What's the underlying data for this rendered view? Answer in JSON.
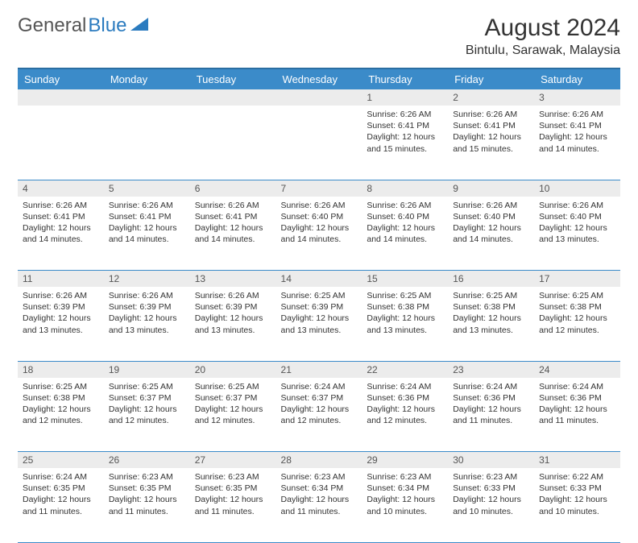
{
  "logo": {
    "text1": "General",
    "text2": "Blue"
  },
  "title": "August 2024",
  "location": "Bintulu, Sarawak, Malaysia",
  "colors": {
    "header_bg": "#3b8bc9",
    "header_border": "#2b6ea2",
    "daynum_bg": "#ececec",
    "text": "#333333",
    "logo_gray": "#555555",
    "logo_blue": "#2b7bbf",
    "cell_border": "#3b8bc9"
  },
  "weekdays": [
    "Sunday",
    "Monday",
    "Tuesday",
    "Wednesday",
    "Thursday",
    "Friday",
    "Saturday"
  ],
  "weeks": [
    [
      null,
      null,
      null,
      null,
      {
        "n": "1",
        "sunrise": "6:26 AM",
        "sunset": "6:41 PM",
        "daylight": "12 hours and 15 minutes."
      },
      {
        "n": "2",
        "sunrise": "6:26 AM",
        "sunset": "6:41 PM",
        "daylight": "12 hours and 15 minutes."
      },
      {
        "n": "3",
        "sunrise": "6:26 AM",
        "sunset": "6:41 PM",
        "daylight": "12 hours and 14 minutes."
      }
    ],
    [
      {
        "n": "4",
        "sunrise": "6:26 AM",
        "sunset": "6:41 PM",
        "daylight": "12 hours and 14 minutes."
      },
      {
        "n": "5",
        "sunrise": "6:26 AM",
        "sunset": "6:41 PM",
        "daylight": "12 hours and 14 minutes."
      },
      {
        "n": "6",
        "sunrise": "6:26 AM",
        "sunset": "6:41 PM",
        "daylight": "12 hours and 14 minutes."
      },
      {
        "n": "7",
        "sunrise": "6:26 AM",
        "sunset": "6:40 PM",
        "daylight": "12 hours and 14 minutes."
      },
      {
        "n": "8",
        "sunrise": "6:26 AM",
        "sunset": "6:40 PM",
        "daylight": "12 hours and 14 minutes."
      },
      {
        "n": "9",
        "sunrise": "6:26 AM",
        "sunset": "6:40 PM",
        "daylight": "12 hours and 14 minutes."
      },
      {
        "n": "10",
        "sunrise": "6:26 AM",
        "sunset": "6:40 PM",
        "daylight": "12 hours and 13 minutes."
      }
    ],
    [
      {
        "n": "11",
        "sunrise": "6:26 AM",
        "sunset": "6:39 PM",
        "daylight": "12 hours and 13 minutes."
      },
      {
        "n": "12",
        "sunrise": "6:26 AM",
        "sunset": "6:39 PM",
        "daylight": "12 hours and 13 minutes."
      },
      {
        "n": "13",
        "sunrise": "6:26 AM",
        "sunset": "6:39 PM",
        "daylight": "12 hours and 13 minutes."
      },
      {
        "n": "14",
        "sunrise": "6:25 AM",
        "sunset": "6:39 PM",
        "daylight": "12 hours and 13 minutes."
      },
      {
        "n": "15",
        "sunrise": "6:25 AM",
        "sunset": "6:38 PM",
        "daylight": "12 hours and 13 minutes."
      },
      {
        "n": "16",
        "sunrise": "6:25 AM",
        "sunset": "6:38 PM",
        "daylight": "12 hours and 13 minutes."
      },
      {
        "n": "17",
        "sunrise": "6:25 AM",
        "sunset": "6:38 PM",
        "daylight": "12 hours and 12 minutes."
      }
    ],
    [
      {
        "n": "18",
        "sunrise": "6:25 AM",
        "sunset": "6:38 PM",
        "daylight": "12 hours and 12 minutes."
      },
      {
        "n": "19",
        "sunrise": "6:25 AM",
        "sunset": "6:37 PM",
        "daylight": "12 hours and 12 minutes."
      },
      {
        "n": "20",
        "sunrise": "6:25 AM",
        "sunset": "6:37 PM",
        "daylight": "12 hours and 12 minutes."
      },
      {
        "n": "21",
        "sunrise": "6:24 AM",
        "sunset": "6:37 PM",
        "daylight": "12 hours and 12 minutes."
      },
      {
        "n": "22",
        "sunrise": "6:24 AM",
        "sunset": "6:36 PM",
        "daylight": "12 hours and 12 minutes."
      },
      {
        "n": "23",
        "sunrise": "6:24 AM",
        "sunset": "6:36 PM",
        "daylight": "12 hours and 11 minutes."
      },
      {
        "n": "24",
        "sunrise": "6:24 AM",
        "sunset": "6:36 PM",
        "daylight": "12 hours and 11 minutes."
      }
    ],
    [
      {
        "n": "25",
        "sunrise": "6:24 AM",
        "sunset": "6:35 PM",
        "daylight": "12 hours and 11 minutes."
      },
      {
        "n": "26",
        "sunrise": "6:23 AM",
        "sunset": "6:35 PM",
        "daylight": "12 hours and 11 minutes."
      },
      {
        "n": "27",
        "sunrise": "6:23 AM",
        "sunset": "6:35 PM",
        "daylight": "12 hours and 11 minutes."
      },
      {
        "n": "28",
        "sunrise": "6:23 AM",
        "sunset": "6:34 PM",
        "daylight": "12 hours and 11 minutes."
      },
      {
        "n": "29",
        "sunrise": "6:23 AM",
        "sunset": "6:34 PM",
        "daylight": "12 hours and 10 minutes."
      },
      {
        "n": "30",
        "sunrise": "6:23 AM",
        "sunset": "6:33 PM",
        "daylight": "12 hours and 10 minutes."
      },
      {
        "n": "31",
        "sunrise": "6:22 AM",
        "sunset": "6:33 PM",
        "daylight": "12 hours and 10 minutes."
      }
    ]
  ],
  "labels": {
    "sunrise": "Sunrise:",
    "sunset": "Sunset:",
    "daylight": "Daylight:"
  }
}
